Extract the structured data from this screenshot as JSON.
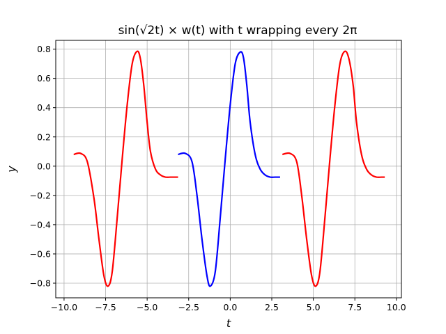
{
  "chart_data": {
    "type": "line",
    "title": "sin(√2t) × w(t) with t wrapping every 2π",
    "xlabel": "t",
    "ylabel": "y",
    "xlim": [
      -10.5,
      10.3
    ],
    "ylim": [
      -0.9,
      0.86
    ],
    "xticks": [
      -10.0,
      -7.5,
      -5.0,
      -2.5,
      0.0,
      2.5,
      5.0,
      7.5,
      10.0
    ],
    "xtick_labels": [
      "−10.0",
      "−7.5",
      "−5.0",
      "−2.5",
      "0.0",
      "2.5",
      "5.0",
      "7.5",
      "10.0"
    ],
    "yticks": [
      -0.8,
      -0.6,
      -0.4,
      -0.2,
      0.0,
      0.2,
      0.4,
      0.6,
      0.8
    ],
    "ytick_labels": [
      "−0.8",
      "−0.6",
      "−0.4",
      "−0.2",
      "0.0",
      "0.2",
      "0.4",
      "0.6",
      "0.8"
    ],
    "grid": true,
    "series": [
      {
        "color": "#ff0000",
        "x": [
          -9.42,
          -9.0,
          -8.6,
          -8.2,
          -7.9,
          -7.6,
          -7.35,
          -7.1,
          -6.8,
          -6.5,
          -6.2,
          -5.9,
          -5.6,
          -5.4,
          -5.2,
          -5.0,
          -4.8,
          -4.5,
          -4.2,
          -3.9,
          -3.6,
          -3.3,
          -3.14
        ],
        "y": [
          0.08,
          0.087,
          0.03,
          -0.22,
          -0.5,
          -0.75,
          -0.82,
          -0.72,
          -0.35,
          0.05,
          0.42,
          0.7,
          0.785,
          0.73,
          0.55,
          0.3,
          0.1,
          -0.02,
          -0.06,
          -0.075,
          -0.075,
          -0.075,
          -0.075
        ]
      },
      {
        "color": "#0000ff",
        "x": [
          -3.14,
          -2.7,
          -2.3,
          -2.0,
          -1.7,
          -1.4,
          -1.2,
          -0.9,
          -0.6,
          -0.3,
          0.0,
          0.3,
          0.6,
          0.8,
          1.0,
          1.2,
          1.5,
          1.8,
          2.1,
          2.4,
          2.7,
          3.0
        ],
        "y": [
          0.08,
          0.087,
          0.03,
          -0.2,
          -0.5,
          -0.75,
          -0.82,
          -0.72,
          -0.35,
          0.05,
          0.42,
          0.7,
          0.78,
          0.74,
          0.55,
          0.3,
          0.08,
          -0.02,
          -0.06,
          -0.075,
          -0.075,
          -0.075
        ]
      },
      {
        "color": "#ff0000",
        "x": [
          3.14,
          3.6,
          4.0,
          4.3,
          4.6,
          4.9,
          5.15,
          5.4,
          5.7,
          6.0,
          6.3,
          6.6,
          6.9,
          7.15,
          7.4,
          7.6,
          7.9,
          8.2,
          8.5,
          8.8,
          9.1,
          9.3
        ],
        "y": [
          0.08,
          0.087,
          0.03,
          -0.2,
          -0.5,
          -0.75,
          -0.82,
          -0.72,
          -0.35,
          0.05,
          0.42,
          0.7,
          0.785,
          0.73,
          0.55,
          0.3,
          0.08,
          -0.02,
          -0.06,
          -0.075,
          -0.075,
          -0.075
        ]
      }
    ]
  }
}
